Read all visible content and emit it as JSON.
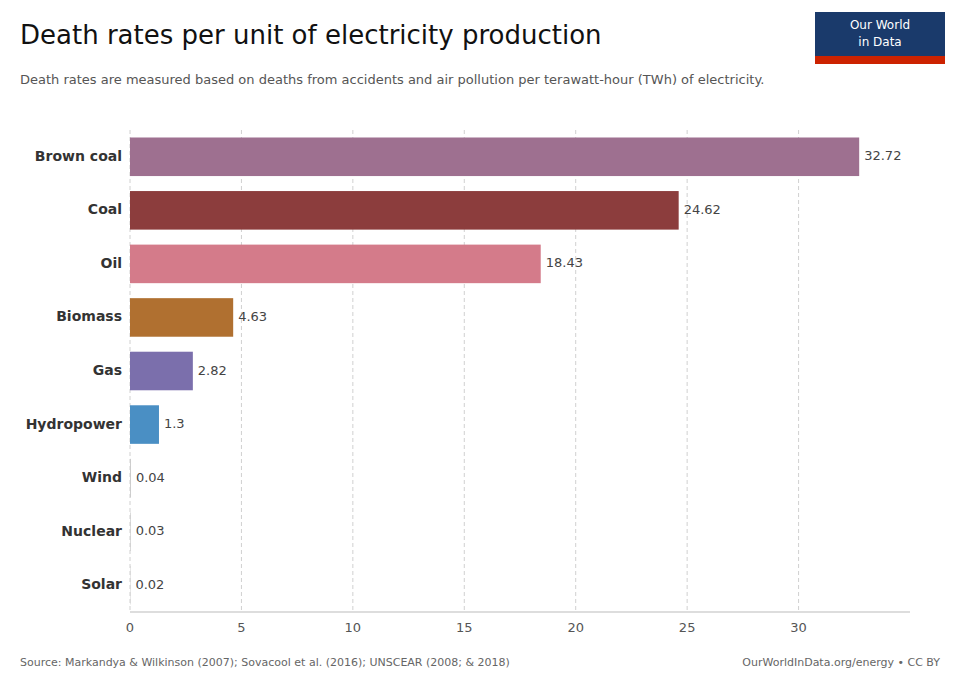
{
  "chart_data": {
    "type": "bar",
    "orientation": "horizontal",
    "title": "Death rates per unit of electricity production",
    "subtitle": "Death rates are measured based on deaths from accidents and air pollution per terawatt-hour (TWh) of electricity.",
    "categories": [
      "Brown coal",
      "Coal",
      "Oil",
      "Biomass",
      "Gas",
      "Hydropower",
      "Wind",
      "Nuclear",
      "Solar"
    ],
    "values": [
      32.72,
      24.62,
      18.43,
      4.63,
      2.82,
      1.3,
      0.04,
      0.03,
      0.02
    ],
    "colors": [
      "#9e7090",
      "#8c3d3d",
      "#d47b8a",
      "#b07030",
      "#7b6fac",
      "#4a8fc4",
      "#c8c8c8",
      "#c8c8c8",
      "#c8c8c8"
    ],
    "xlim": [
      0,
      35
    ],
    "xticks": [
      0,
      5,
      10,
      15,
      20,
      25,
      30
    ],
    "grid": true,
    "data_labels": true,
    "source": "Source: Markandya & Wilkinson (2007); Sovacool et al. (2016); UNSCEAR (2008; & 2018)",
    "credit": "OurWorldInData.org/energy • CC BY",
    "annotations": [
      "Our World",
      "in Data"
    ]
  }
}
